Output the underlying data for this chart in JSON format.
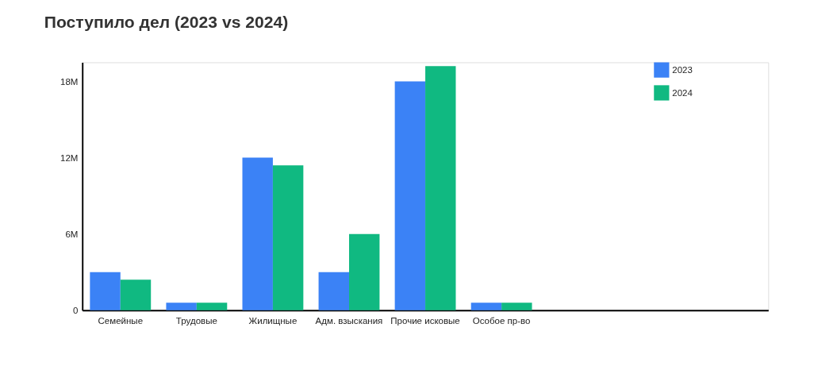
{
  "chart_data": {
    "type": "bar",
    "title": "Поступило дел (2023 vs 2024)",
    "categories": [
      "Семейные",
      "Трудовые",
      "Жилищные",
      "Адм. взыскания",
      "Прочие исковые",
      "Особое пр-во",
      null,
      null,
      null
    ],
    "series": [
      {
        "name": "2023",
        "color": "#3b82f6",
        "values": [
          3.0,
          0.6,
          12.0,
          3.0,
          18.0,
          0.6,
          null,
          null,
          null
        ]
      },
      {
        "name": "2024",
        "color": "#10b981",
        "values": [
          2.4,
          0.6,
          11.4,
          6.0,
          19.2,
          0.6,
          null,
          null,
          null
        ]
      }
    ],
    "ylim": [
      0,
      19.5
    ],
    "yticks": [
      {
        "value": 0,
        "label": "0"
      },
      {
        "value": 6,
        "label": "6M"
      },
      {
        "value": 12,
        "label": "12M"
      },
      {
        "value": 18,
        "label": "18M"
      }
    ],
    "grid": false,
    "legend": "top right"
  }
}
